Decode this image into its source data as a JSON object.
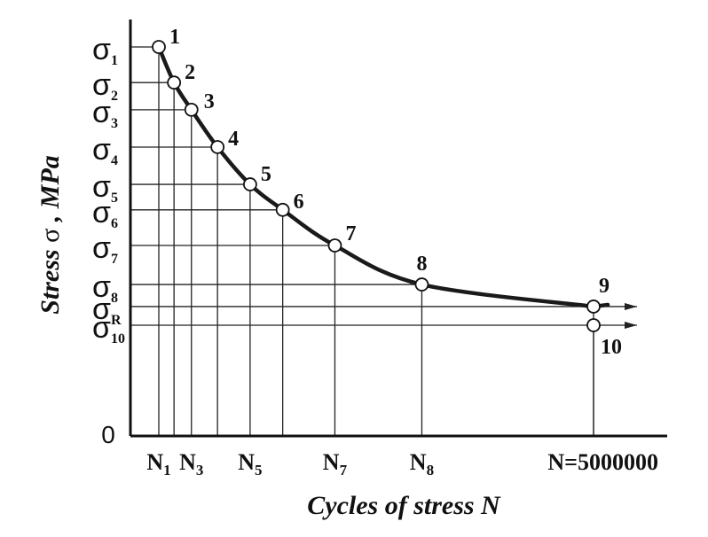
{
  "chart_data": {
    "type": "line",
    "title": "",
    "xlabel": "Cycles of stress N",
    "ylabel_prefix": "Stress ",
    "ylabel_symbol": "σ",
    "ylabel_suffix": ",  MPa",
    "y_zero_label": "0",
    "colors": {
      "curve": "#1a1a1a",
      "grid": "#222222",
      "marker_fill": "#ffffff"
    },
    "points": [
      {
        "label": "1",
        "x_frac": 0.0,
        "y_frac": 1.0
      },
      {
        "label": "2",
        "x_frac": 0.035,
        "y_frac": 0.895
      },
      {
        "label": "3",
        "x_frac": 0.075,
        "y_frac": 0.815
      },
      {
        "label": "4",
        "x_frac": 0.135,
        "y_frac": 0.705
      },
      {
        "label": "5",
        "x_frac": 0.21,
        "y_frac": 0.595
      },
      {
        "label": "6",
        "x_frac": 0.285,
        "y_frac": 0.52
      },
      {
        "label": "7",
        "x_frac": 0.405,
        "y_frac": 0.415
      },
      {
        "label": "8",
        "x_frac": 0.605,
        "y_frac": 0.3
      },
      {
        "label": "9",
        "x_frac": 1.0,
        "y_frac": 0.235
      },
      {
        "label": "10",
        "x_frac": 1.0,
        "y_frac": 0.18
      }
    ],
    "y_ticks": [
      {
        "sym": "σ",
        "sub": "1",
        "y_frac": 1.0
      },
      {
        "sym": "σ",
        "sub": "2",
        "y_frac": 0.895
      },
      {
        "sym": "σ",
        "sub": "3",
        "y_frac": 0.815
      },
      {
        "sym": "σ",
        "sub": "4",
        "y_frac": 0.705
      },
      {
        "sym": "σ",
        "sub": "5",
        "y_frac": 0.595
      },
      {
        "sym": "σ",
        "sub": "6",
        "y_frac": 0.52
      },
      {
        "sym": "σ",
        "sub": "7",
        "y_frac": 0.415
      },
      {
        "sym": "σ",
        "sub": "8",
        "y_frac": 0.3
      },
      {
        "sym": "σ",
        "sub": "R",
        "y_frac": 0.235
      },
      {
        "sym": "σ",
        "sub": "10",
        "y_frac": 0.18
      }
    ],
    "x_ticks": [
      {
        "main": "N",
        "sub": "1",
        "x_frac": 0.0
      },
      {
        "main": "N",
        "sub": "3",
        "x_frac": 0.075
      },
      {
        "main": "N",
        "sub": "5",
        "x_frac": 0.21
      },
      {
        "main": "N",
        "sub": "7",
        "x_frac": 0.405
      },
      {
        "main": "N",
        "sub": "8",
        "x_frac": 0.605
      },
      {
        "main": "N=5000000",
        "sub": "",
        "x_frac": 1.0
      }
    ]
  }
}
